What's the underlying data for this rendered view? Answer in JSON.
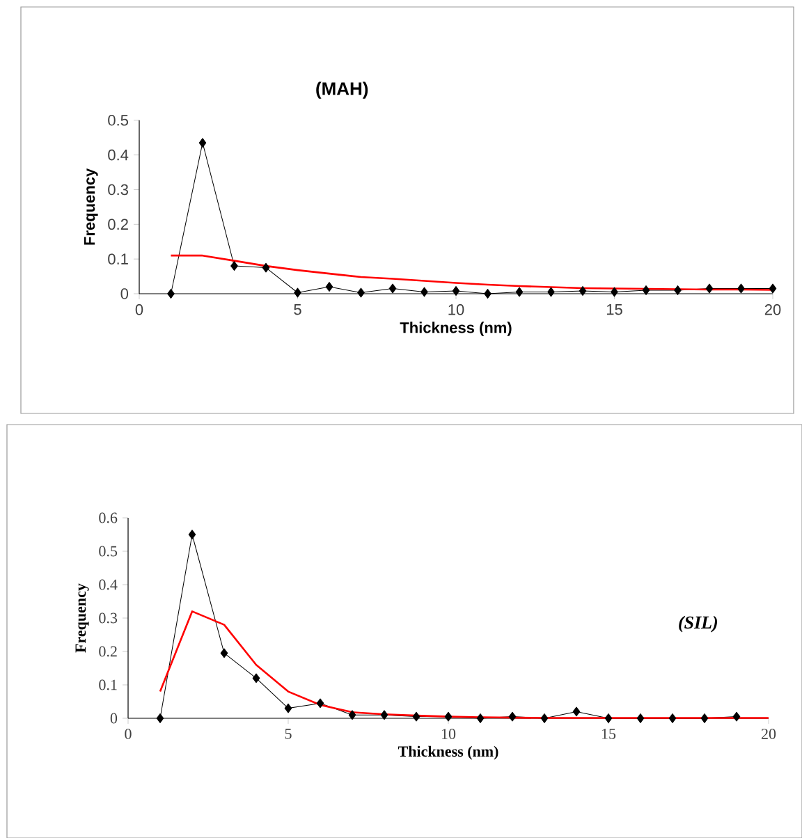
{
  "chart_data": [
    {
      "type": "line",
      "title": "(MAH)",
      "xlabel": "Thickness (nm)",
      "ylabel": "Frequency",
      "xlim": [
        0,
        20
      ],
      "ylim": [
        0,
        0.5
      ],
      "xticks": [
        0,
        5,
        10,
        15,
        20
      ],
      "yticks": [
        0,
        0.1,
        0.2,
        0.3,
        0.4,
        0.5
      ],
      "grid": false,
      "series": [
        {
          "color": "#000000",
          "marker": "diamond",
          "x": [
            1,
            2,
            3,
            4,
            5,
            6,
            7,
            8,
            9,
            10,
            11,
            12,
            13,
            14,
            15,
            16,
            17,
            18,
            19,
            20
          ],
          "values": [
            0,
            0.435,
            0.08,
            0.075,
            0.003,
            0.02,
            0.003,
            0.015,
            0.005,
            0.008,
            0,
            0.005,
            0.005,
            0.008,
            0.005,
            0.01,
            0.01,
            0.015,
            0.015,
            0.015
          ]
        },
        {
          "color": "#ff0000",
          "marker": "none",
          "x": [
            1,
            2,
            3,
            4,
            5,
            6,
            7,
            8,
            9,
            10,
            11,
            12,
            13,
            14,
            15,
            16,
            17,
            18,
            19,
            20
          ],
          "values": [
            0.11,
            0.11,
            0.095,
            0.08,
            0.068,
            0.058,
            0.048,
            0.043,
            0.037,
            0.031,
            0.026,
            0.022,
            0.019,
            0.016,
            0.015,
            0.014,
            0.013,
            0.012,
            0.012,
            0.011
          ]
        }
      ]
    },
    {
      "type": "line",
      "annotations": [
        "(SIL)"
      ],
      "xlabel": "Thickness (nm)",
      "ylabel": "Frequency",
      "xlim": [
        0,
        20
      ],
      "ylim": [
        0,
        0.6
      ],
      "xticks": [
        0,
        5,
        10,
        15,
        20
      ],
      "yticks": [
        0,
        0.1,
        0.2,
        0.3,
        0.4,
        0.5,
        0.6
      ],
      "grid": false,
      "series": [
        {
          "color": "#000000",
          "marker": "diamond",
          "x": [
            1,
            2,
            3,
            4,
            5,
            6,
            7,
            8,
            9,
            10,
            11,
            12,
            13,
            14,
            15,
            16,
            17,
            18,
            19
          ],
          "values": [
            0,
            0.55,
            0.195,
            0.12,
            0.03,
            0.045,
            0.01,
            0.01,
            0.005,
            0.005,
            0,
            0.005,
            0,
            0.02,
            0,
            0,
            0,
            0,
            0.005
          ]
        },
        {
          "color": "#ff0000",
          "marker": "none",
          "x": [
            1,
            2,
            3,
            4,
            5,
            6,
            7,
            8,
            9,
            10,
            11,
            12,
            13,
            14,
            15,
            16,
            17,
            18,
            19,
            20
          ],
          "values": [
            0.08,
            0.32,
            0.28,
            0.16,
            0.08,
            0.04,
            0.018,
            0.012,
            0.008,
            0.005,
            0.003,
            0.002,
            0.001,
            0.001,
            0.001,
            0.001,
            0.001,
            0.001,
            0.001,
            0.001
          ]
        }
      ]
    }
  ]
}
